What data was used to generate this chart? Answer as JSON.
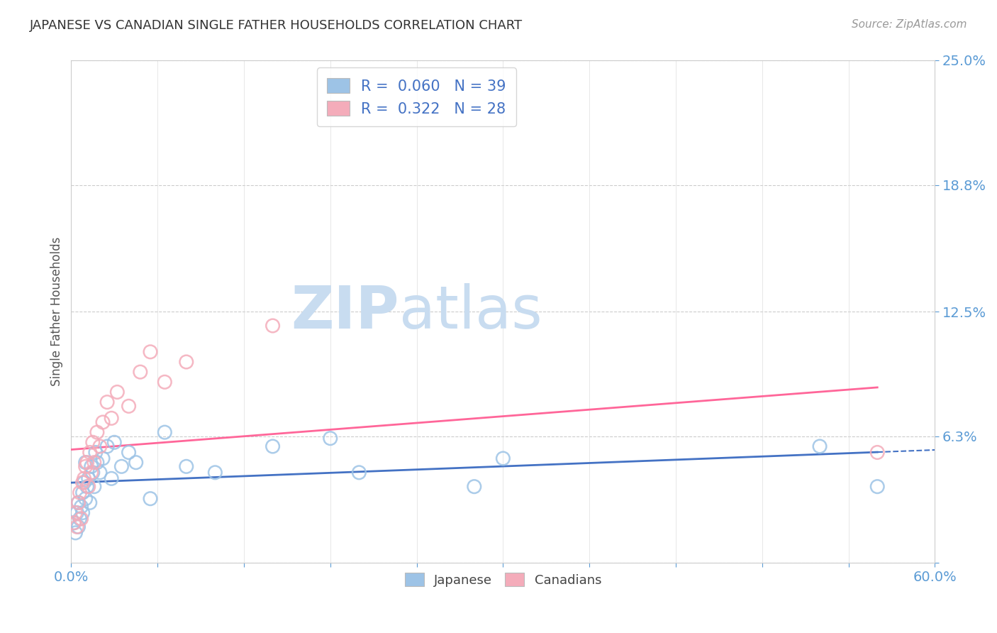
{
  "title": "JAPANESE VS CANADIAN SINGLE FATHER HOUSEHOLDS CORRELATION CHART",
  "source_text": "Source: ZipAtlas.com",
  "ylabel": "Single Father Households",
  "xlim": [
    0.0,
    0.6
  ],
  "ylim": [
    0.0,
    0.25
  ],
  "yticks": [
    0.0,
    0.063,
    0.125,
    0.188,
    0.25
  ],
  "ytick_labels": [
    "",
    "6.3%",
    "12.5%",
    "18.8%",
    "25.0%"
  ],
  "legend_r_japanese": "0.060",
  "legend_n_japanese": "39",
  "legend_r_canadians": "0.322",
  "legend_n_canadians": "28",
  "japanese_color": "#9DC3E6",
  "canadian_color": "#F4ACBA",
  "japanese_line_color": "#4472C4",
  "canadian_line_color": "#FF6699",
  "watermark_zip": "ZIP",
  "watermark_atlas": "atlas",
  "watermark_color_zip": "#C5D9EE",
  "watermark_color_atlas": "#C5D9EE",
  "japanese_x": [
    0.002,
    0.003,
    0.004,
    0.005,
    0.005,
    0.006,
    0.007,
    0.008,
    0.008,
    0.009,
    0.01,
    0.01,
    0.011,
    0.012,
    0.013,
    0.014,
    0.015,
    0.016,
    0.017,
    0.018,
    0.02,
    0.022,
    0.025,
    0.028,
    0.03,
    0.035,
    0.04,
    0.045,
    0.055,
    0.065,
    0.08,
    0.1,
    0.14,
    0.18,
    0.2,
    0.28,
    0.3,
    0.52,
    0.56
  ],
  "japanese_y": [
    0.02,
    0.015,
    0.025,
    0.03,
    0.018,
    0.022,
    0.028,
    0.035,
    0.025,
    0.04,
    0.032,
    0.05,
    0.038,
    0.042,
    0.03,
    0.048,
    0.045,
    0.038,
    0.055,
    0.05,
    0.045,
    0.052,
    0.058,
    0.042,
    0.06,
    0.048,
    0.055,
    0.05,
    0.032,
    0.065,
    0.048,
    0.045,
    0.058,
    0.062,
    0.045,
    0.038,
    0.052,
    0.058,
    0.038
  ],
  "canadian_x": [
    0.002,
    0.003,
    0.004,
    0.005,
    0.006,
    0.007,
    0.008,
    0.009,
    0.01,
    0.011,
    0.012,
    0.013,
    0.014,
    0.015,
    0.016,
    0.018,
    0.02,
    0.022,
    0.025,
    0.028,
    0.032,
    0.04,
    0.048,
    0.055,
    0.065,
    0.08,
    0.14,
    0.56
  ],
  "canadian_y": [
    0.02,
    0.025,
    0.018,
    0.03,
    0.035,
    0.022,
    0.04,
    0.042,
    0.048,
    0.05,
    0.038,
    0.055,
    0.045,
    0.06,
    0.05,
    0.065,
    0.058,
    0.07,
    0.08,
    0.072,
    0.085,
    0.078,
    0.095,
    0.105,
    0.09,
    0.1,
    0.118,
    0.055
  ]
}
